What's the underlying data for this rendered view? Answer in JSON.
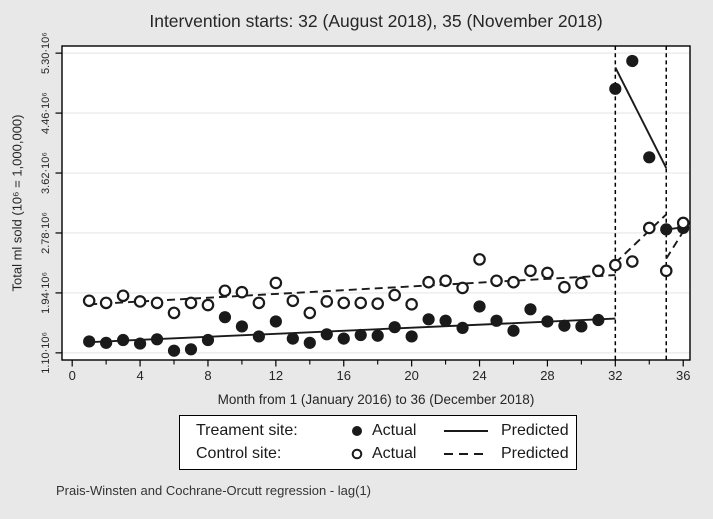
{
  "footnote": "Prais-Winsten and Cochrane-Orcutt regression - lag(1)",
  "colors": {
    "background": "#e8e8e8",
    "plot_background": "#ffffff",
    "grid": "#ececec",
    "axis": "#000000",
    "ink": "#1a1a1a"
  },
  "chart_data": {
    "type": "scatter",
    "title": "Intervention starts: 32 (August 2018), 35 (November 2018)",
    "xlabel": "Month from 1 (January 2016) to 36 (December 2018)",
    "ylabel": "Total ml sold (10⁶ = 1,000,000)",
    "value_unit": "millions of ml (10⁶)",
    "xlim": [
      -0.6,
      36.4
    ],
    "ylim": [
      1.0,
      5.4
    ],
    "grid": "horizontal",
    "x_ticks_major": [
      0,
      4,
      8,
      12,
      16,
      20,
      24,
      28,
      32,
      36
    ],
    "x_ticks_minor": [
      2,
      6,
      10,
      14,
      18,
      22,
      26,
      30,
      34
    ],
    "y_ticks": {
      "values": [
        1.1,
        1.94,
        2.78,
        3.62,
        4.46,
        5.3
      ],
      "labels": [
        "1.10·10⁶",
        "1.94·10⁶",
        "2.78·10⁶",
        "3.62·10⁶",
        "4.46·10⁶",
        "5.30·10⁶"
      ]
    },
    "x": [
      1,
      2,
      3,
      4,
      5,
      6,
      7,
      8,
      9,
      10,
      11,
      12,
      13,
      14,
      15,
      16,
      17,
      18,
      19,
      20,
      21,
      22,
      23,
      24,
      25,
      26,
      27,
      28,
      29,
      30,
      31,
      32,
      33,
      34,
      35,
      36
    ],
    "series": [
      {
        "name": "Treatment actual",
        "kind": "scatter",
        "marker": "filled-circle",
        "values": [
          1.26,
          1.24,
          1.28,
          1.23,
          1.29,
          1.13,
          1.15,
          1.28,
          1.6,
          1.47,
          1.33,
          1.54,
          1.3,
          1.24,
          1.36,
          1.3,
          1.35,
          1.34,
          1.46,
          1.33,
          1.57,
          1.55,
          1.45,
          1.75,
          1.55,
          1.41,
          1.71,
          1.54,
          1.48,
          1.47,
          1.56,
          4.8,
          5.19,
          3.84,
          2.83,
          2.85
        ]
      },
      {
        "name": "Control actual",
        "kind": "scatter",
        "marker": "open-circle",
        "values": [
          1.83,
          1.8,
          1.9,
          1.82,
          1.8,
          1.66,
          1.8,
          1.77,
          1.97,
          1.95,
          1.8,
          2.08,
          1.83,
          1.66,
          1.82,
          1.8,
          1.8,
          1.79,
          1.91,
          1.78,
          2.09,
          2.11,
          2.01,
          2.41,
          2.11,
          2.09,
          2.25,
          2.22,
          2.02,
          2.08,
          2.25,
          2.33,
          2.38,
          2.85,
          2.25,
          2.92
        ]
      },
      {
        "name": "Treatment predicted",
        "kind": "line",
        "line": "solid",
        "segments": [
          [
            [
              1,
              1.25
            ],
            [
              32,
              1.58
            ]
          ],
          [
            [
              32,
              5.1
            ],
            [
              35,
              3.69
            ]
          ],
          [
            [
              35,
              2.83
            ],
            [
              36,
              2.86
            ]
          ]
        ]
      },
      {
        "name": "Control predicted",
        "kind": "line",
        "line": "dashed",
        "segments": [
          [
            [
              1,
              1.78
            ],
            [
              32,
              2.19
            ]
          ],
          [
            [
              32,
              2.36
            ],
            [
              35,
              3.04
            ]
          ],
          [
            [
              35,
              2.42
            ],
            [
              36,
              2.8
            ]
          ]
        ]
      }
    ],
    "reference_lines_x": [
      32,
      35
    ],
    "legend_position": "bottom"
  },
  "legend": {
    "rows": [
      {
        "label": "Treament site:",
        "marker": "filled-circle",
        "marker_label": "Actual",
        "line": "solid",
        "line_label": "Predicted"
      },
      {
        "label": "Control site:",
        "marker": "open-circle",
        "marker_label": "Actual",
        "line": "dashed",
        "line_label": "Predicted"
      }
    ]
  }
}
